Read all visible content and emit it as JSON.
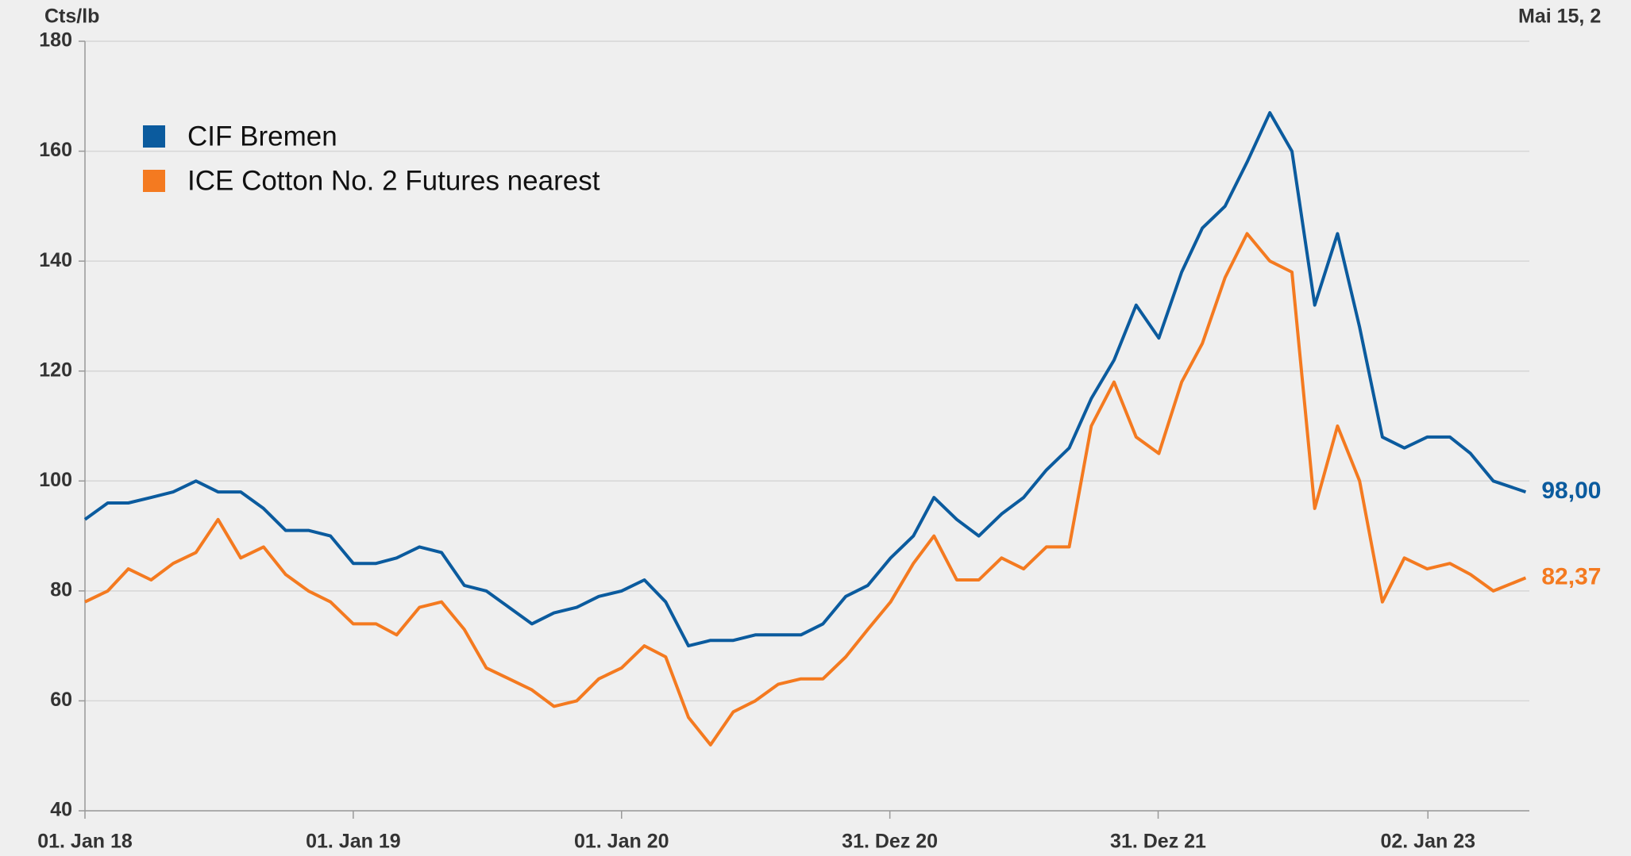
{
  "chart_data": {
    "type": "line",
    "y_label": "Cts/lb",
    "annotation": "Mai 15, 2",
    "x": [
      "2018-01-01",
      "2018-02-01",
      "2018-03-01",
      "2018-04-01",
      "2018-05-01",
      "2018-06-01",
      "2018-07-01",
      "2018-08-01",
      "2018-09-01",
      "2018-10-01",
      "2018-11-01",
      "2018-12-01",
      "2019-01-01",
      "2019-02-01",
      "2019-03-01",
      "2019-04-01",
      "2019-05-01",
      "2019-06-01",
      "2019-07-01",
      "2019-08-01",
      "2019-09-01",
      "2019-10-01",
      "2019-11-01",
      "2019-12-01",
      "2020-01-01",
      "2020-02-01",
      "2020-03-01",
      "2020-04-01",
      "2020-05-01",
      "2020-06-01",
      "2020-07-01",
      "2020-08-01",
      "2020-09-01",
      "2020-10-01",
      "2020-11-01",
      "2020-12-01",
      "2021-01-01",
      "2021-02-01",
      "2021-03-01",
      "2021-04-01",
      "2021-05-01",
      "2021-06-01",
      "2021-07-01",
      "2021-08-01",
      "2021-09-01",
      "2021-10-01",
      "2021-11-01",
      "2021-12-01",
      "2022-01-01",
      "2022-02-01",
      "2022-03-01",
      "2022-04-01",
      "2022-05-01",
      "2022-06-01",
      "2022-07-01",
      "2022-08-01",
      "2022-09-01",
      "2022-10-01",
      "2022-11-01",
      "2022-12-01",
      "2023-01-01",
      "2023-02-01",
      "2023-03-01",
      "2023-04-01",
      "2023-05-15"
    ],
    "series": [
      {
        "name": "CIF Bremen",
        "color": "#0b5b9e",
        "values": [
          93,
          96,
          96,
          97,
          98,
          100,
          98,
          98,
          95,
          91,
          91,
          90,
          85,
          85,
          86,
          88,
          87,
          81,
          80,
          77,
          74,
          76,
          77,
          79,
          80,
          82,
          78,
          70,
          71,
          71,
          72,
          72,
          72,
          74,
          79,
          81,
          86,
          90,
          97,
          93,
          90,
          94,
          97,
          102,
          106,
          115,
          122,
          132,
          126,
          138,
          146,
          150,
          158,
          167,
          160,
          132,
          145,
          128,
          108,
          106,
          108,
          108,
          105,
          100,
          98
        ],
        "value_labels": [
          null,
          null,
          null,
          null,
          null,
          null,
          null,
          null,
          null,
          null,
          null,
          null,
          null,
          null,
          null,
          null,
          null,
          null,
          null,
          null,
          null,
          null,
          null,
          null,
          null,
          null,
          null,
          null,
          null,
          null,
          null,
          null,
          null,
          null,
          null,
          null,
          null,
          null,
          null,
          null,
          null,
          null,
          null,
          null,
          null,
          null,
          null,
          null,
          null,
          null,
          null,
          null,
          null,
          null,
          null,
          null,
          null,
          null,
          null,
          null,
          null,
          null,
          null,
          null,
          "98,00"
        ]
      },
      {
        "name": "ICE Cotton No. 2 Futures nearest",
        "color": "#f47a20",
        "values": [
          78,
          80,
          84,
          82,
          85,
          87,
          93,
          86,
          88,
          83,
          80,
          78,
          74,
          74,
          72,
          77,
          78,
          73,
          66,
          64,
          62,
          59,
          60,
          64,
          66,
          70,
          68,
          57,
          52,
          58,
          60,
          63,
          64,
          64,
          68,
          73,
          78,
          85,
          90,
          82,
          82,
          86,
          84,
          88,
          88,
          110,
          118,
          108,
          105,
          118,
          125,
          137,
          145,
          140,
          138,
          95,
          110,
          100,
          78,
          86,
          84,
          85,
          83,
          80,
          82.37
        ],
        "value_labels": [
          null,
          null,
          null,
          null,
          null,
          null,
          null,
          null,
          null,
          null,
          null,
          null,
          null,
          null,
          null,
          null,
          null,
          null,
          null,
          null,
          null,
          null,
          null,
          null,
          null,
          null,
          null,
          null,
          null,
          null,
          null,
          null,
          null,
          null,
          null,
          null,
          null,
          null,
          null,
          null,
          null,
          null,
          null,
          null,
          null,
          null,
          null,
          null,
          null,
          null,
          null,
          null,
          null,
          null,
          null,
          null,
          null,
          null,
          null,
          null,
          null,
          null,
          null,
          null,
          "82,37"
        ]
      }
    ],
    "xlim": [
      "2018-01-01",
      "2023-05-20"
    ],
    "xticks": [
      {
        "value": "2018-01-01",
        "label": "01. Jan 18"
      },
      {
        "value": "2019-01-01",
        "label": "01. Jan 19"
      },
      {
        "value": "2020-01-01",
        "label": "01. Jan 20"
      },
      {
        "value": "2020-12-31",
        "label": "31. Dez 20"
      },
      {
        "value": "2021-12-31",
        "label": "31. Dez 21"
      },
      {
        "value": "2023-01-02",
        "label": "02. Jan 23"
      }
    ],
    "ylim": [
      40,
      180
    ],
    "yticks": [
      40,
      60,
      80,
      100,
      120,
      140,
      160,
      180
    ],
    "grid": true,
    "legend": "upper left"
  }
}
